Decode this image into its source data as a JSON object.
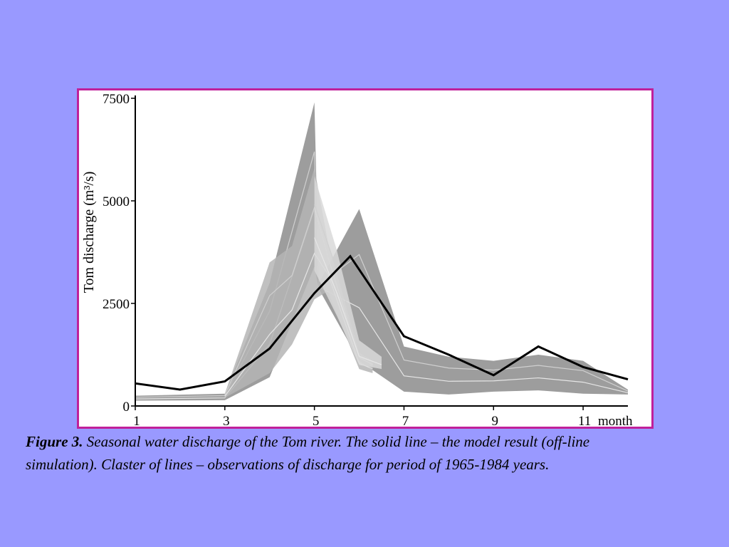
{
  "chart_data": {
    "type": "line",
    "title": "",
    "xlabel": "month",
    "ylabel": "Tom discharge (m³/s)",
    "xlim": [
      1,
      12
    ],
    "ylim": [
      0,
      7500
    ],
    "x_ticks": [
      1,
      3,
      5,
      7,
      9,
      11
    ],
    "y_ticks": [
      0,
      2500,
      5000,
      7500
    ],
    "grid": false,
    "series": [
      {
        "kind": "model",
        "color": "#000000",
        "x": [
          1,
          2,
          3,
          4,
          5,
          5.8,
          7,
          8,
          9,
          10,
          11,
          12
        ],
        "values": [
          550,
          400,
          600,
          1400,
          2750,
          3650,
          1700,
          1250,
          750,
          1450,
          950,
          650
        ]
      }
    ],
    "observation_bands": [
      {
        "shade": "#8c8c8c",
        "x": [
          1,
          3,
          4,
          5,
          5.1,
          6,
          7,
          8,
          9,
          10,
          11,
          12
        ],
        "upper": [
          250,
          300,
          3000,
          7400,
          3000,
          4800,
          1450,
          1200,
          1100,
          1250,
          1100,
          400
        ],
        "lower": [
          130,
          140,
          700,
          3400,
          2850,
          1100,
          350,
          280,
          350,
          380,
          300,
          280
        ]
      },
      {
        "shade": "#b5b5b5",
        "x": [
          3,
          4,
          4.5,
          5,
          5.3,
          6,
          6.3
        ],
        "upper": [
          300,
          3500,
          3900,
          5800,
          4000,
          1300,
          1100
        ],
        "lower": [
          200,
          800,
          1500,
          2600,
          2800,
          900,
          800
        ]
      },
      {
        "shade": "#d9d9d9",
        "x": [
          5,
          5.5,
          6,
          6.5
        ],
        "upper": [
          5600,
          3800,
          1600,
          1200
        ],
        "lower": [
          3300,
          2200,
          1000,
          900
        ]
      }
    ]
  },
  "figure": {
    "frame_color": "#c0209a",
    "background": "#9999ff"
  },
  "caption": {
    "lead": "Figure 3.",
    "text": " Seasonal water discharge of the Tom river. The solid line – the model result (off-line simulation). Claster of lines – observations of discharge for period of 1965-1984 years."
  }
}
